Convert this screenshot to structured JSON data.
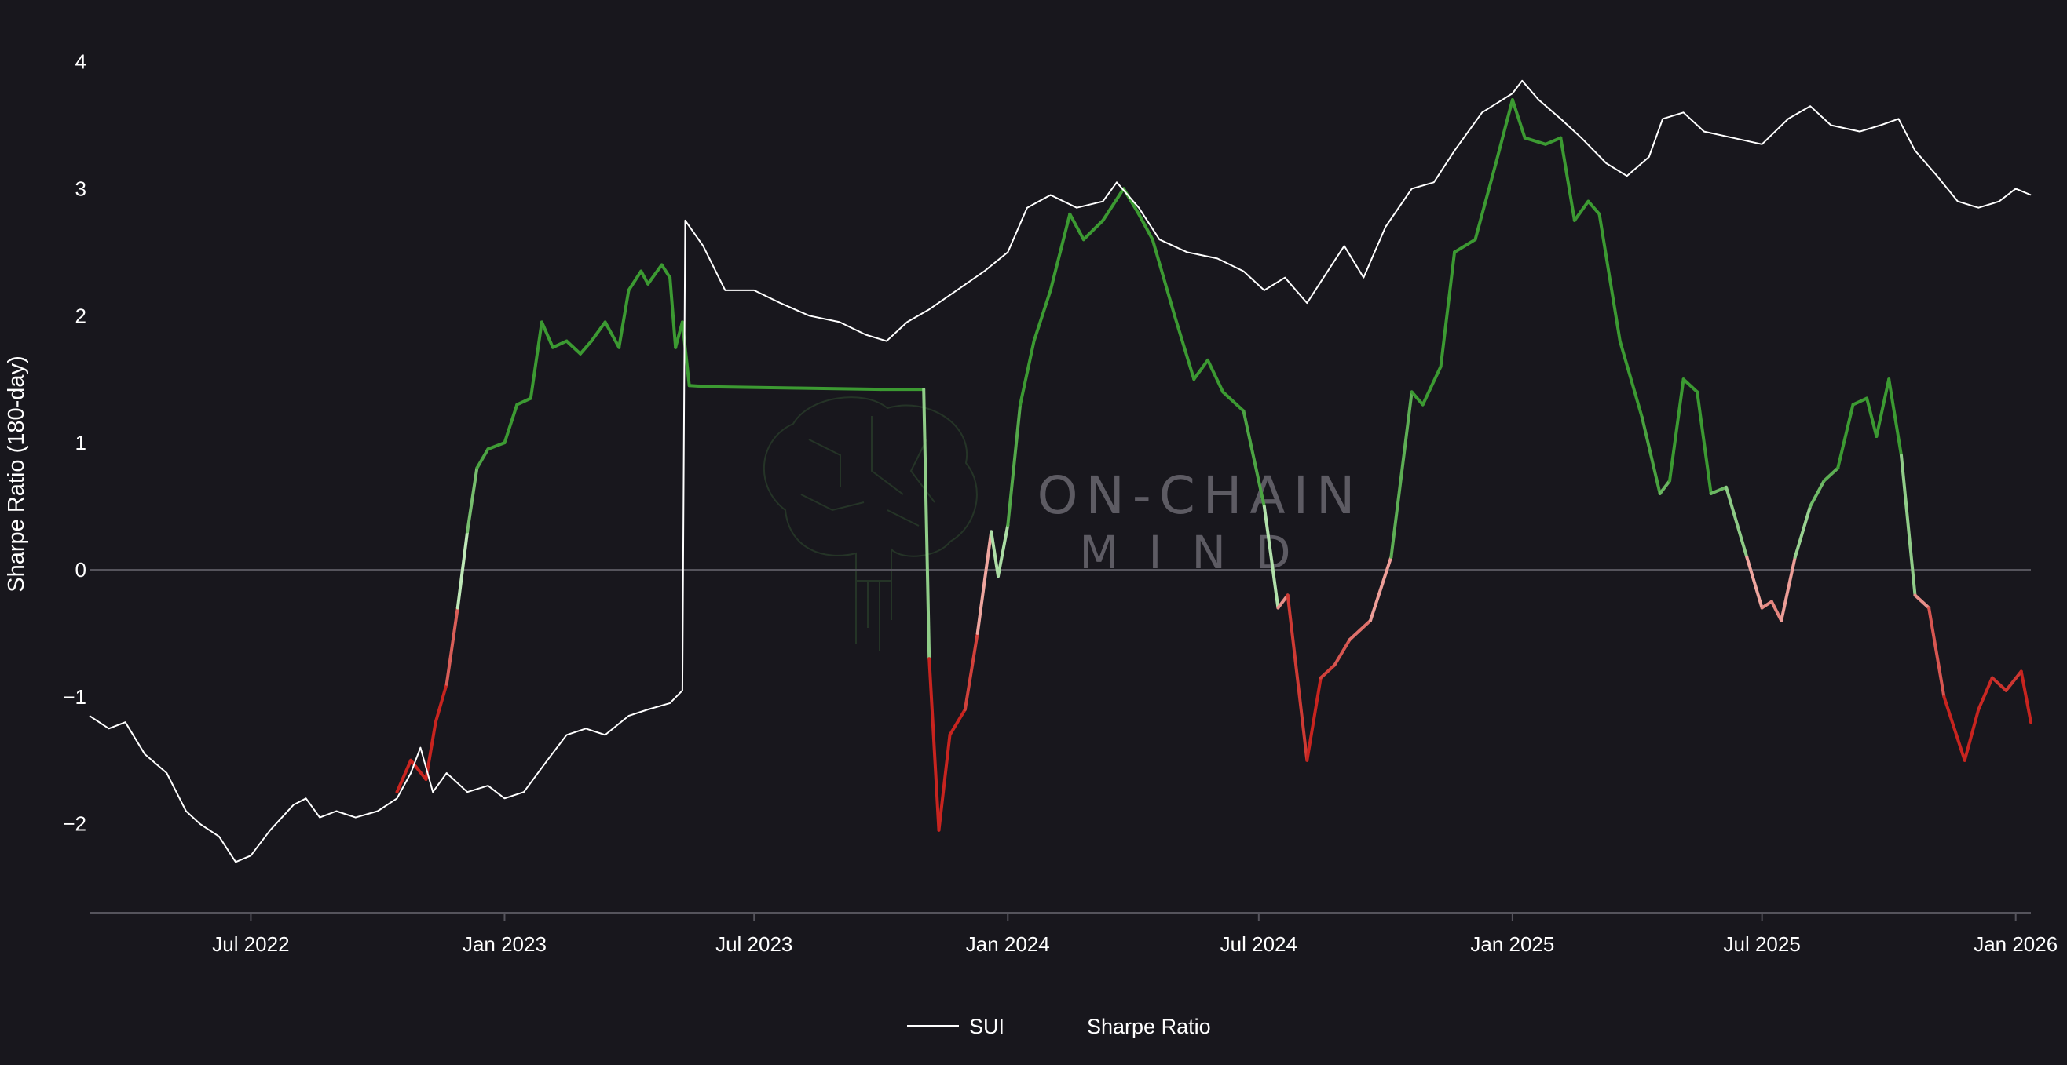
{
  "colors": {
    "background": "#18171d",
    "sui_line": "#ffffff",
    "positive_strong": "#3c9a32",
    "positive_light": "#bfe9b8",
    "negative_light": "#f3b4ad",
    "negative_strong": "#c8241f",
    "zero_line": "#55545c",
    "axis_line": "#55545c"
  },
  "watermark": {
    "line1": "ON-CHAIN",
    "line2": "MIND",
    "icon": "brain-circuit-icon"
  },
  "chart_data": {
    "type": "line",
    "ylabel": "Sharpe Ratio (180-day)",
    "xlabel": "",
    "x_range": [
      "2022-03-06",
      "2026-01-12"
    ],
    "ylim": [
      -2.7,
      4.3
    ],
    "yticks": [
      {
        "value": 4,
        "label": "4"
      },
      {
        "value": 3,
        "label": "3"
      },
      {
        "value": 2,
        "label": "2"
      },
      {
        "value": 1,
        "label": "1"
      },
      {
        "value": 0,
        "label": "0"
      },
      {
        "value": -1,
        "label": "−1"
      },
      {
        "value": -2,
        "label": "−2"
      }
    ],
    "xticks": [
      {
        "date": "2022-07-01",
        "label": "Jul 2022"
      },
      {
        "date": "2023-01-01",
        "label": "Jan 2023"
      },
      {
        "date": "2023-07-01",
        "label": "Jul 2023"
      },
      {
        "date": "2024-01-01",
        "label": "Jan 2024"
      },
      {
        "date": "2024-07-01",
        "label": "Jul 2024"
      },
      {
        "date": "2025-01-01",
        "label": "Jan 2025"
      },
      {
        "date": "2025-07-01",
        "label": "Jul 2025"
      },
      {
        "date": "2026-01-01",
        "label": "Jan 2026"
      }
    ],
    "grid": false,
    "zero_line": true,
    "legend": {
      "position": "bottom-center",
      "entries": [
        {
          "name": "SUI",
          "marker": "line"
        },
        {
          "name": "Sharpe Ratio",
          "marker": "none"
        }
      ]
    },
    "series": [
      {
        "name": "SUI",
        "scale": "log-normalized",
        "color": "#ffffff",
        "points": [
          [
            "2022-03-06",
            -1.15
          ],
          [
            "2022-03-20",
            -1.25
          ],
          [
            "2022-04-01",
            -1.2
          ],
          [
            "2022-04-15",
            -1.45
          ],
          [
            "2022-05-01",
            -1.6
          ],
          [
            "2022-05-15",
            -1.9
          ],
          [
            "2022-05-25",
            -2.0
          ],
          [
            "2022-06-08",
            -2.1
          ],
          [
            "2022-06-20",
            -2.3
          ],
          [
            "2022-07-01",
            -2.25
          ],
          [
            "2022-07-15",
            -2.05
          ],
          [
            "2022-08-01",
            -1.85
          ],
          [
            "2022-08-10",
            -1.8
          ],
          [
            "2022-08-20",
            -1.95
          ],
          [
            "2022-09-01",
            -1.9
          ],
          [
            "2022-09-15",
            -1.95
          ],
          [
            "2022-10-01",
            -1.9
          ],
          [
            "2022-10-15",
            -1.8
          ],
          [
            "2022-10-25",
            -1.6
          ],
          [
            "2022-11-01",
            -1.4
          ],
          [
            "2022-11-10",
            -1.75
          ],
          [
            "2022-11-20",
            -1.6
          ],
          [
            "2022-12-05",
            -1.75
          ],
          [
            "2022-12-20",
            -1.7
          ],
          [
            "2023-01-01",
            -1.8
          ],
          [
            "2023-01-15",
            -1.75
          ],
          [
            "2023-02-01",
            -1.5
          ],
          [
            "2023-02-15",
            -1.3
          ],
          [
            "2023-03-01",
            -1.25
          ],
          [
            "2023-03-15",
            -1.3
          ],
          [
            "2023-04-01",
            -1.15
          ],
          [
            "2023-04-15",
            -1.1
          ],
          [
            "2023-05-01",
            -1.05
          ],
          [
            "2023-05-10",
            -0.95
          ],
          [
            "2023-05-12",
            2.75
          ],
          [
            "2023-05-25",
            2.55
          ],
          [
            "2023-06-10",
            2.2
          ],
          [
            "2023-07-01",
            2.2
          ],
          [
            "2023-07-20",
            2.1
          ],
          [
            "2023-08-10",
            2.0
          ],
          [
            "2023-09-01",
            1.95
          ],
          [
            "2023-09-20",
            1.85
          ],
          [
            "2023-10-05",
            1.8
          ],
          [
            "2023-10-20",
            1.95
          ],
          [
            "2023-11-05",
            2.05
          ],
          [
            "2023-11-25",
            2.2
          ],
          [
            "2023-12-15",
            2.35
          ],
          [
            "2024-01-01",
            2.5
          ],
          [
            "2024-01-15",
            2.85
          ],
          [
            "2024-02-01",
            2.95
          ],
          [
            "2024-02-20",
            2.85
          ],
          [
            "2024-03-10",
            2.9
          ],
          [
            "2024-03-20",
            3.05
          ],
          [
            "2024-04-05",
            2.85
          ],
          [
            "2024-04-20",
            2.6
          ],
          [
            "2024-05-10",
            2.5
          ],
          [
            "2024-06-01",
            2.45
          ],
          [
            "2024-06-20",
            2.35
          ],
          [
            "2024-07-05",
            2.2
          ],
          [
            "2024-07-20",
            2.3
          ],
          [
            "2024-08-05",
            2.1
          ],
          [
            "2024-08-20",
            2.35
          ],
          [
            "2024-09-01",
            2.55
          ],
          [
            "2024-09-15",
            2.3
          ],
          [
            "2024-10-01",
            2.7
          ],
          [
            "2024-10-20",
            3.0
          ],
          [
            "2024-11-05",
            3.05
          ],
          [
            "2024-11-20",
            3.3
          ],
          [
            "2024-12-10",
            3.6
          ],
          [
            "2025-01-01",
            3.75
          ],
          [
            "2025-01-08",
            3.85
          ],
          [
            "2025-01-20",
            3.7
          ],
          [
            "2025-02-05",
            3.55
          ],
          [
            "2025-02-20",
            3.4
          ],
          [
            "2025-03-10",
            3.2
          ],
          [
            "2025-03-25",
            3.1
          ],
          [
            "2025-04-10",
            3.25
          ],
          [
            "2025-04-20",
            3.55
          ],
          [
            "2025-05-05",
            3.6
          ],
          [
            "2025-05-20",
            3.45
          ],
          [
            "2025-06-10",
            3.4
          ],
          [
            "2025-07-01",
            3.35
          ],
          [
            "2025-07-20",
            3.55
          ],
          [
            "2025-08-05",
            3.65
          ],
          [
            "2025-08-20",
            3.5
          ],
          [
            "2025-09-10",
            3.45
          ],
          [
            "2025-09-25",
            3.5
          ],
          [
            "2025-10-08",
            3.55
          ],
          [
            "2025-10-20",
            3.3
          ],
          [
            "2025-11-05",
            3.1
          ],
          [
            "2025-11-20",
            2.9
          ],
          [
            "2025-12-05",
            2.85
          ],
          [
            "2025-12-20",
            2.9
          ],
          [
            "2026-01-01",
            3.0
          ],
          [
            "2026-01-12",
            2.95
          ]
        ]
      },
      {
        "name": "Sharpe Ratio",
        "color_mode": "diverging",
        "points": [
          [
            "2022-10-15",
            -1.75
          ],
          [
            "2022-10-25",
            -1.5
          ],
          [
            "2022-11-05",
            -1.65
          ],
          [
            "2022-11-12",
            -1.2
          ],
          [
            "2022-11-20",
            -0.9
          ],
          [
            "2022-11-28",
            -0.3
          ],
          [
            "2022-12-05",
            0.3
          ],
          [
            "2022-12-12",
            0.8
          ],
          [
            "2022-12-20",
            0.95
          ],
          [
            "2023-01-01",
            1.0
          ],
          [
            "2023-01-10",
            1.3
          ],
          [
            "2023-01-20",
            1.35
          ],
          [
            "2023-01-28",
            1.95
          ],
          [
            "2023-02-05",
            1.75
          ],
          [
            "2023-02-15",
            1.8
          ],
          [
            "2023-02-25",
            1.7
          ],
          [
            "2023-03-05",
            1.8
          ],
          [
            "2023-03-15",
            1.95
          ],
          [
            "2023-03-25",
            1.75
          ],
          [
            "2023-04-01",
            2.2
          ],
          [
            "2023-04-10",
            2.35
          ],
          [
            "2023-04-15",
            2.25
          ],
          [
            "2023-04-25",
            2.4
          ],
          [
            "2023-05-01",
            2.3
          ],
          [
            "2023-05-05",
            1.75
          ],
          [
            "2023-05-10",
            1.95
          ],
          [
            "2023-05-15",
            1.45
          ],
          [
            "2023-06-01",
            1.44
          ],
          [
            "2023-08-01",
            1.43
          ],
          [
            "2023-10-01",
            1.42
          ],
          [
            "2023-11-01",
            1.42
          ],
          [
            "2023-11-05",
            -0.7
          ],
          [
            "2023-11-12",
            -2.05
          ],
          [
            "2023-11-20",
            -1.3
          ],
          [
            "2023-12-01",
            -1.1
          ],
          [
            "2023-12-10",
            -0.5
          ],
          [
            "2023-12-20",
            0.3
          ],
          [
            "2023-12-25",
            -0.05
          ],
          [
            "2024-01-01",
            0.35
          ],
          [
            "2024-01-10",
            1.3
          ],
          [
            "2024-01-20",
            1.8
          ],
          [
            "2024-02-01",
            2.2
          ],
          [
            "2024-02-15",
            2.8
          ],
          [
            "2024-02-25",
            2.6
          ],
          [
            "2024-03-10",
            2.75
          ],
          [
            "2024-03-25",
            3.0
          ],
          [
            "2024-04-05",
            2.8
          ],
          [
            "2024-04-15",
            2.6
          ],
          [
            "2024-05-01",
            2.0
          ],
          [
            "2024-05-15",
            1.5
          ],
          [
            "2024-05-25",
            1.65
          ],
          [
            "2024-06-05",
            1.4
          ],
          [
            "2024-06-20",
            1.25
          ],
          [
            "2024-07-05",
            0.5
          ],
          [
            "2024-07-15",
            -0.3
          ],
          [
            "2024-07-22",
            -0.2
          ],
          [
            "2024-08-05",
            -1.5
          ],
          [
            "2024-08-15",
            -0.85
          ],
          [
            "2024-08-25",
            -0.75
          ],
          [
            "2024-09-05",
            -0.55
          ],
          [
            "2024-09-20",
            -0.4
          ],
          [
            "2024-10-05",
            0.1
          ],
          [
            "2024-10-20",
            1.4
          ],
          [
            "2024-10-28",
            1.3
          ],
          [
            "2024-11-10",
            1.6
          ],
          [
            "2024-11-20",
            2.5
          ],
          [
            "2024-12-05",
            2.6
          ],
          [
            "2024-12-20",
            3.2
          ],
          [
            "2025-01-01",
            3.7
          ],
          [
            "2025-01-10",
            3.4
          ],
          [
            "2025-01-25",
            3.35
          ],
          [
            "2025-02-05",
            3.4
          ],
          [
            "2025-02-15",
            2.75
          ],
          [
            "2025-02-25",
            2.9
          ],
          [
            "2025-03-05",
            2.8
          ],
          [
            "2025-03-20",
            1.8
          ],
          [
            "2025-04-05",
            1.2
          ],
          [
            "2025-04-18",
            0.6
          ],
          [
            "2025-04-25",
            0.7
          ],
          [
            "2025-05-05",
            1.5
          ],
          [
            "2025-05-15",
            1.4
          ],
          [
            "2025-05-25",
            0.6
          ],
          [
            "2025-06-05",
            0.65
          ],
          [
            "2025-06-20",
            0.1
          ],
          [
            "2025-07-01",
            -0.3
          ],
          [
            "2025-07-08",
            -0.25
          ],
          [
            "2025-07-15",
            -0.4
          ],
          [
            "2025-07-25",
            0.1
          ],
          [
            "2025-08-05",
            0.5
          ],
          [
            "2025-08-15",
            0.7
          ],
          [
            "2025-08-25",
            0.8
          ],
          [
            "2025-09-05",
            1.3
          ],
          [
            "2025-09-15",
            1.35
          ],
          [
            "2025-09-22",
            1.05
          ],
          [
            "2025-10-01",
            1.5
          ],
          [
            "2025-10-10",
            0.9
          ],
          [
            "2025-10-20",
            -0.2
          ],
          [
            "2025-10-30",
            -0.3
          ],
          [
            "2025-11-10",
            -1.0
          ],
          [
            "2025-11-25",
            -1.5
          ],
          [
            "2025-12-05",
            -1.1
          ],
          [
            "2025-12-15",
            -0.85
          ],
          [
            "2025-12-25",
            -0.95
          ],
          [
            "2026-01-05",
            -0.8
          ],
          [
            "2026-01-12",
            -1.2
          ]
        ]
      }
    ]
  }
}
